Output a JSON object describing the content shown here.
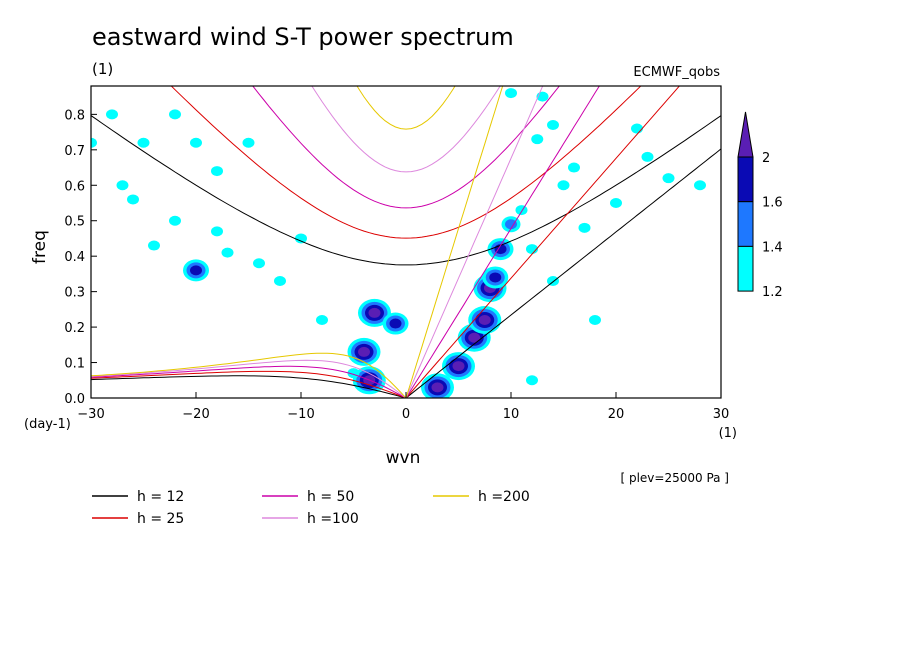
{
  "chart_data": {
    "type": "heatmap",
    "title": "eastward wind S-T power spectrum",
    "subtitle_left": "(1)",
    "subtitle_right": "ECMWF_qobs",
    "xlabel": "wvn",
    "ylabel": "freq",
    "x_unit_label": "(1)",
    "y_unit_label": "(day-1)",
    "plev_label": "[ plev=25000 Pa ]",
    "xlim": [
      -30,
      30
    ],
    "ylim": [
      0,
      0.88
    ],
    "x_ticks": [
      -30,
      -20,
      -10,
      0,
      10,
      20,
      30
    ],
    "y_ticks": [
      0.0,
      0.1,
      0.2,
      0.3,
      0.4,
      0.5,
      0.6,
      0.7,
      0.8
    ],
    "x_tick_labels": [
      "-30",
      "-20",
      "-10",
      "0",
      "10",
      "20",
      "30"
    ],
    "y_tick_labels": [
      "0.0",
      "0.1",
      "0.2",
      "0.3",
      "0.4",
      "0.5",
      "0.6",
      "0.7",
      "0.8"
    ],
    "colorbar": {
      "levels": [
        1.2,
        1.4,
        1.6,
        2.0
      ],
      "labels": [
        "1.2",
        "1.4",
        "1.6",
        "2"
      ],
      "colors": [
        "#00ffff",
        "#1e78ff",
        "#0a0ab4",
        "#5a1eb4"
      ]
    },
    "dispersion_curves": [
      {
        "label": "h = 12",
        "h": 12,
        "color": "#000000"
      },
      {
        "label": "h = 25",
        "h": 25,
        "color": "#dc0000"
      },
      {
        "label": "h = 50",
        "h": 50,
        "color": "#cc00aa"
      },
      {
        "label": "h =100",
        "h": 100,
        "color": "#dd88dd"
      },
      {
        "label": "h =200",
        "h": 200,
        "color": "#e6c800"
      }
    ],
    "blobs": [
      {
        "x": 3,
        "y": 0.03,
        "lvl": 3
      },
      {
        "x": 5,
        "y": 0.09,
        "lvl": 3
      },
      {
        "x": 6.5,
        "y": 0.17,
        "lvl": 3
      },
      {
        "x": 7.5,
        "y": 0.22,
        "lvl": 3
      },
      {
        "x": 8,
        "y": 0.31,
        "lvl": 3
      },
      {
        "x": 8.5,
        "y": 0.34,
        "lvl": 2
      },
      {
        "x": 9,
        "y": 0.42,
        "lvl": 2
      },
      {
        "x": 10,
        "y": 0.49,
        "lvl": 1
      },
      {
        "x": 11,
        "y": 0.53,
        "lvl": 0
      },
      {
        "x": 12.5,
        "y": 0.73,
        "lvl": 0
      },
      {
        "x": 14,
        "y": 0.77,
        "lvl": 0
      },
      {
        "x": -4,
        "y": 0.13,
        "lvl": 3
      },
      {
        "x": -3.5,
        "y": 0.05,
        "lvl": 3
      },
      {
        "x": -3,
        "y": 0.24,
        "lvl": 3
      },
      {
        "x": -1,
        "y": 0.21,
        "lvl": 2
      },
      {
        "x": -5,
        "y": 0.07,
        "lvl": 0
      },
      {
        "x": -28,
        "y": 0.8,
        "lvl": 0
      },
      {
        "x": -25,
        "y": 0.72,
        "lvl": 0
      },
      {
        "x": -22,
        "y": 0.8,
        "lvl": 0
      },
      {
        "x": -20,
        "y": 0.72,
        "lvl": 0
      },
      {
        "x": -18,
        "y": 0.64,
        "lvl": 0
      },
      {
        "x": -15,
        "y": 0.72,
        "lvl": 0
      },
      {
        "x": -20,
        "y": 0.36,
        "lvl": 2
      },
      {
        "x": -17,
        "y": 0.41,
        "lvl": 0
      },
      {
        "x": -14,
        "y": 0.38,
        "lvl": 0
      },
      {
        "x": -12,
        "y": 0.33,
        "lvl": 0
      },
      {
        "x": -18,
        "y": 0.47,
        "lvl": 0
      },
      {
        "x": -26,
        "y": 0.56,
        "lvl": 0
      },
      {
        "x": -27,
        "y": 0.6,
        "lvl": 0
      },
      {
        "x": -22,
        "y": 0.5,
        "lvl": 0
      },
      {
        "x": -10,
        "y": 0.45,
        "lvl": 0
      },
      {
        "x": 12,
        "y": 0.42,
        "lvl": 0
      },
      {
        "x": 14,
        "y": 0.33,
        "lvl": 0
      },
      {
        "x": 15,
        "y": 0.6,
        "lvl": 0
      },
      {
        "x": 17,
        "y": 0.48,
        "lvl": 0
      },
      {
        "x": 20,
        "y": 0.55,
        "lvl": 0
      },
      {
        "x": 13,
        "y": 0.85,
        "lvl": 0
      },
      {
        "x": 16,
        "y": 0.65,
        "lvl": 0
      },
      {
        "x": 22,
        "y": 0.76,
        "lvl": 0
      },
      {
        "x": 23,
        "y": 0.68,
        "lvl": 0
      },
      {
        "x": 25,
        "y": 0.62,
        "lvl": 0
      },
      {
        "x": 12,
        "y": 0.05,
        "lvl": 0
      },
      {
        "x": 18,
        "y": 0.22,
        "lvl": 0
      },
      {
        "x": -8,
        "y": 0.22,
        "lvl": 0
      },
      {
        "x": -30,
        "y": 0.72,
        "lvl": 0
      },
      {
        "x": -24,
        "y": 0.43,
        "lvl": 0
      },
      {
        "x": 10,
        "y": 0.86,
        "lvl": 0
      },
      {
        "x": 28,
        "y": 0.6,
        "lvl": 0
      }
    ]
  }
}
